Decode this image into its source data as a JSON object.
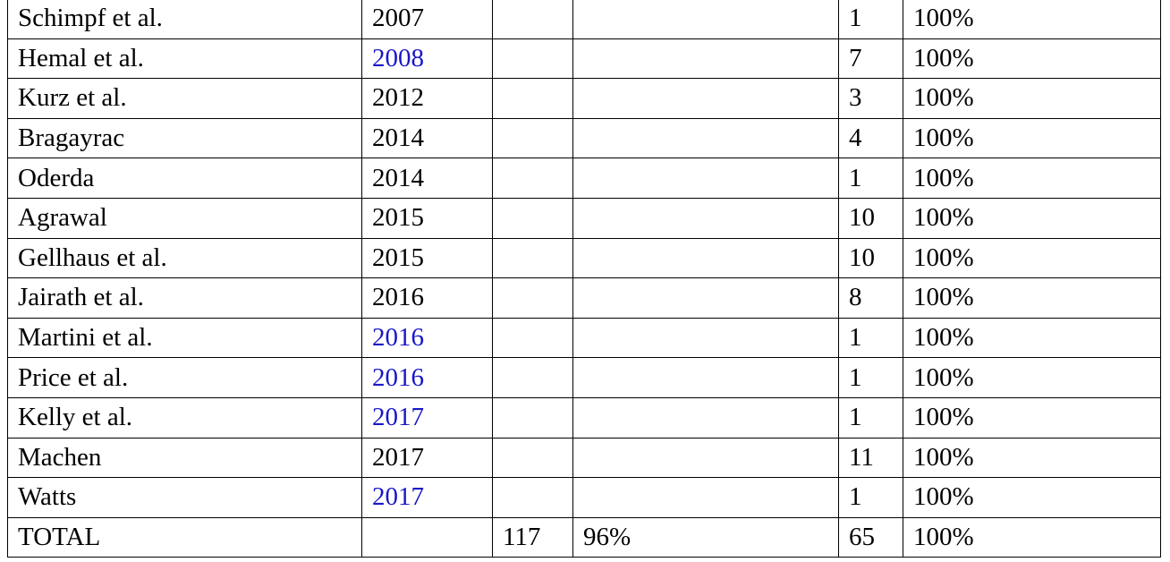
{
  "table": {
    "rows": [
      {
        "author": "Schimpf et al.",
        "year": "2007",
        "year_linked": false,
        "n1": "",
        "p1": "",
        "n2": "1",
        "p2": "100%"
      },
      {
        "author": "Hemal et al.",
        "year": "2008",
        "year_linked": true,
        "n1": "",
        "p1": "",
        "n2": "7",
        "p2": "100%"
      },
      {
        "author": "Kurz et al.",
        "year": "2012",
        "year_linked": false,
        "n1": "",
        "p1": "",
        "n2": "3",
        "p2": "100%"
      },
      {
        "author": "Bragayrac",
        "year": "2014",
        "year_linked": false,
        "n1": "",
        "p1": "",
        "n2": "4",
        "p2": "100%"
      },
      {
        "author": "Oderda",
        "year": "2014",
        "year_linked": false,
        "n1": "",
        "p1": "",
        "n2": "1",
        "p2": "100%"
      },
      {
        "author": "Agrawal",
        "year": "2015",
        "year_linked": false,
        "n1": "",
        "p1": "",
        "n2": "10",
        "p2": "100%"
      },
      {
        "author": "Gellhaus et al.",
        "year": "2015",
        "year_linked": false,
        "n1": "",
        "p1": "",
        "n2": "10",
        "p2": "100%"
      },
      {
        "author": "Jairath et al.",
        "year": "2016",
        "year_linked": false,
        "n1": "",
        "p1": "",
        "n2": "8",
        "p2": "100%"
      },
      {
        "author": "Martini et al.",
        "year": "2016",
        "year_linked": true,
        "n1": "",
        "p1": "",
        "n2": "1",
        "p2": "100%"
      },
      {
        "author": "Price et al.",
        "year": "2016",
        "year_linked": true,
        "n1": "",
        "p1": "",
        "n2": "1",
        "p2": "100%"
      },
      {
        "author": "Kelly et al.",
        "year": "2017",
        "year_linked": true,
        "n1": "",
        "p1": "",
        "n2": "1",
        "p2": "100%"
      },
      {
        "author": "Machen",
        "year": "2017",
        "year_linked": false,
        "n1": "",
        "p1": "",
        "n2": "11",
        "p2": "100%"
      },
      {
        "author": "Watts",
        "year": "2017",
        "year_linked": true,
        "n1": "",
        "p1": "",
        "n2": "1",
        "p2": "100%"
      },
      {
        "author": "TOTAL",
        "year": "",
        "year_linked": false,
        "n1": "117",
        "p1": "96%",
        "n2": "65",
        "p2": "100%"
      }
    ]
  },
  "colors": {
    "link": "#1a16c8",
    "text": "#000000",
    "border": "#000000"
  }
}
